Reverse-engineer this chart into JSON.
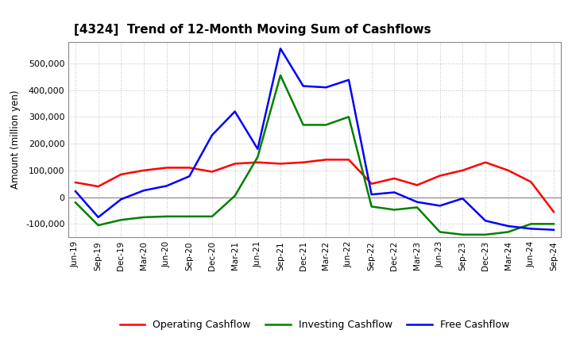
{
  "title": "[4324]  Trend of 12-Month Moving Sum of Cashflows",
  "ylabel": "Amount (million yen)",
  "ylim": [
    -150000,
    580000
  ],
  "yticks": [
    -100000,
    0,
    100000,
    200000,
    300000,
    400000,
    500000
  ],
  "background_color": "#ffffff",
  "grid_color": "#aaaaaa",
  "x_labels": [
    "Jun-19",
    "Sep-19",
    "Dec-19",
    "Mar-20",
    "Jun-20",
    "Sep-20",
    "Dec-20",
    "Mar-21",
    "Jun-21",
    "Sep-21",
    "Dec-21",
    "Mar-22",
    "Jun-22",
    "Sep-22",
    "Dec-22",
    "Mar-23",
    "Jun-23",
    "Sep-23",
    "Dec-23",
    "Mar-24",
    "Jun-24",
    "Sep-24"
  ],
  "operating": [
    55000,
    40000,
    85000,
    100000,
    110000,
    110000,
    95000,
    125000,
    130000,
    125000,
    130000,
    140000,
    140000,
    50000,
    70000,
    45000,
    80000,
    100000,
    130000,
    100000,
    57000,
    -55000
  ],
  "investing": [
    -20000,
    -105000,
    -85000,
    -75000,
    -72000,
    -72000,
    -72000,
    5000,
    150000,
    455000,
    270000,
    270000,
    300000,
    -35000,
    -47000,
    -38000,
    -130000,
    -140000,
    -140000,
    -130000,
    -100000,
    -100000
  ],
  "free": [
    22000,
    -75000,
    -8000,
    25000,
    42000,
    78000,
    232000,
    320000,
    180000,
    555000,
    415000,
    410000,
    438000,
    10000,
    18000,
    -18000,
    -32000,
    -5000,
    -88000,
    -108000,
    -118000,
    -122000
  ],
  "op_color": "#ff0000",
  "inv_color": "#008000",
  "free_color": "#0000ff",
  "line_width": 1.8
}
